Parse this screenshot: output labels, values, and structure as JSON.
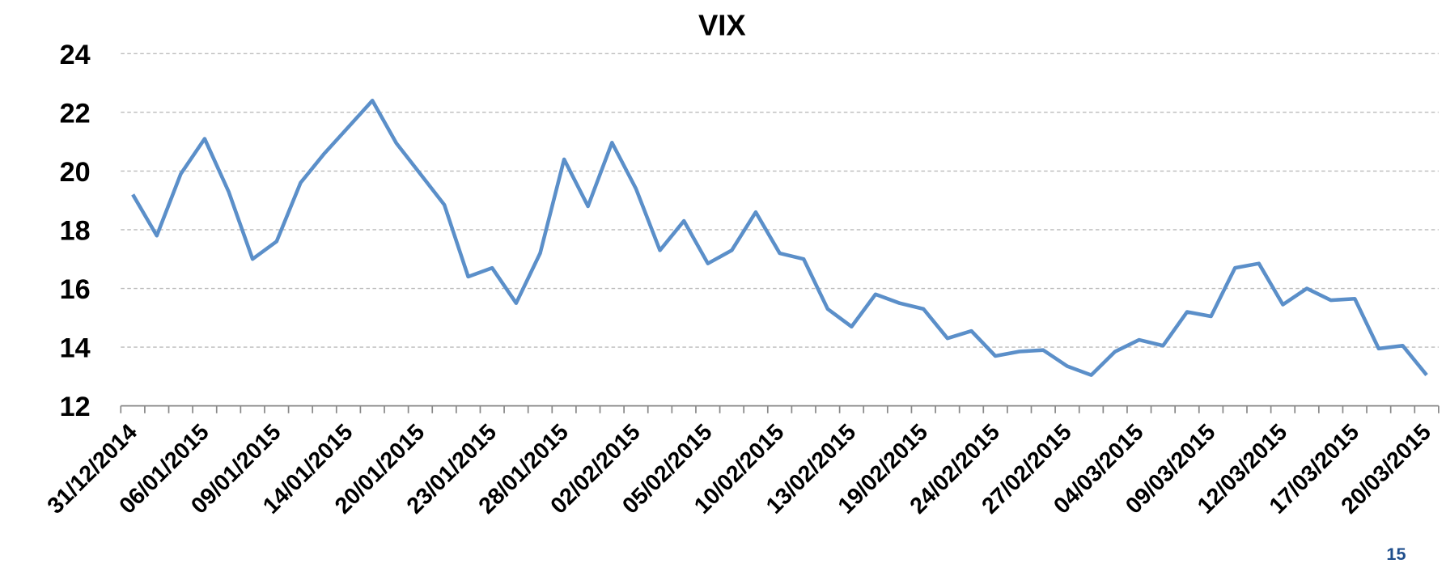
{
  "chart_data": {
    "type": "line",
    "title": "VIX",
    "categories": [
      "31/12/2014",
      null,
      null,
      "06/01/2015",
      null,
      null,
      "09/01/2015",
      null,
      null,
      "14/01/2015",
      null,
      null,
      "20/01/2015",
      null,
      null,
      "23/01/2015",
      null,
      null,
      "28/01/2015",
      null,
      null,
      "02/02/2015",
      null,
      null,
      "05/02/2015",
      null,
      null,
      "10/02/2015",
      null,
      null,
      "13/02/2015",
      null,
      null,
      "19/02/2015",
      null,
      null,
      "24/02/2015",
      null,
      null,
      "27/02/2015",
      null,
      null,
      "04/03/2015",
      null,
      null,
      "09/03/2015",
      null,
      null,
      "12/03/2015",
      null,
      null,
      "17/03/2015",
      null,
      null,
      "20/03/2015"
    ],
    "values": [
      19.2,
      17.8,
      19.9,
      21.1,
      19.3,
      17.0,
      17.6,
      19.6,
      20.6,
      21.5,
      22.4,
      20.95,
      19.9,
      18.85,
      16.4,
      16.7,
      15.5,
      17.2,
      20.4,
      18.8,
      20.97,
      19.4,
      17.3,
      18.3,
      16.85,
      17.3,
      18.6,
      17.2,
      17.0,
      15.3,
      14.7,
      15.8,
      15.5,
      15.3,
      14.3,
      14.55,
      13.7,
      13.85,
      13.9,
      13.35,
      13.05,
      13.85,
      14.25,
      14.05,
      15.2,
      15.05,
      16.7,
      16.85,
      15.45,
      16.0,
      15.6,
      15.65,
      13.95,
      14.05,
      13.05
    ],
    "color": "#5b8fc9",
    "ylim": [
      12,
      24
    ],
    "yticks": [
      12,
      14,
      16,
      18,
      20,
      22,
      24
    ],
    "grid": true
  },
  "page_number": "15"
}
